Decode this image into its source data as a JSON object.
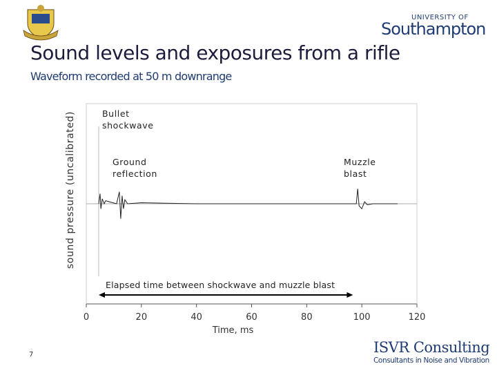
{
  "header": {
    "university_top": "UNIVERSITY OF",
    "university_name": "Southampton"
  },
  "title": "Sound levels and exposures from a rifle",
  "subtitle": "Waveform recorded at 50 m downrange",
  "chart_data": {
    "type": "line",
    "xlabel": "Time, ms",
    "ylabel": "sound pressure (uncalibrated)",
    "xlim": [
      0,
      120
    ],
    "xticks": [
      0,
      20,
      40,
      60,
      80,
      100,
      120
    ],
    "ylim": [
      -1,
      1
    ],
    "series": [
      {
        "name": "waveform",
        "color": "#222222",
        "x": [
          4.5,
          5,
          5.3,
          5.8,
          6.5,
          7,
          11,
          12,
          12.5,
          13,
          13.5,
          14,
          15,
          20,
          40,
          60,
          80,
          98,
          98.5,
          99,
          100,
          101,
          102,
          104,
          113
        ],
        "values": [
          0,
          0.1,
          -0.05,
          0.05,
          0,
          0.03,
          0,
          0.12,
          -0.15,
          0.08,
          -0.05,
          0.04,
          0,
          0.01,
          0,
          0,
          0,
          0,
          0.15,
          -0.02,
          -0.05,
          0.02,
          -0.01,
          0,
          0
        ]
      }
    ],
    "annotations": [
      "Bullet shockwave",
      "Ground reflection",
      "Muzzle blast"
    ],
    "span": {
      "label": "Elapsed time between shockwave and muzzle blast",
      "x": [
        4.5,
        96.8
      ]
    }
  },
  "footer": {
    "page": "7",
    "company": "ISVR Consulting",
    "tagline": "Consultants in Noise and Vibration"
  }
}
